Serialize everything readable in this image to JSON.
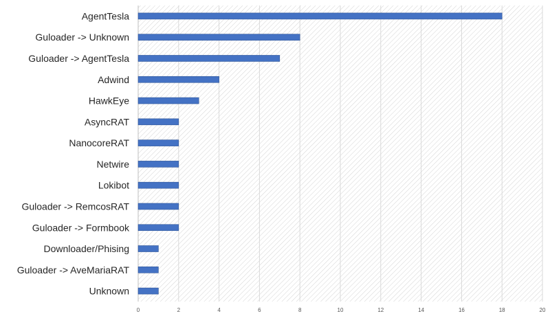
{
  "chart_data": {
    "type": "bar",
    "orientation": "horizontal",
    "categories": [
      "AgentTesla",
      "Guloader -> Unknown",
      "Guloader -> AgentTesla",
      "Adwind",
      "HawkEye",
      "AsyncRAT",
      "NanocoreRAT",
      "Netwire",
      "Lokibot",
      "Guloader -> RemcosRAT",
      "Guloader -> Formbook",
      "Downloader/Phising",
      "Guloader -> AveMariaRAT",
      "Unknown"
    ],
    "values": [
      18,
      8,
      7,
      4,
      3,
      2,
      2,
      2,
      2,
      2,
      2,
      1,
      1,
      1
    ],
    "xlim": [
      0,
      20
    ],
    "xticks": [
      "0",
      "2",
      "4",
      "6",
      "8",
      "10",
      "12",
      "14",
      "16",
      "18",
      "20"
    ],
    "title": "",
    "xlabel": "",
    "ylabel": "",
    "grid": true,
    "bar_color": "#4472c4"
  }
}
